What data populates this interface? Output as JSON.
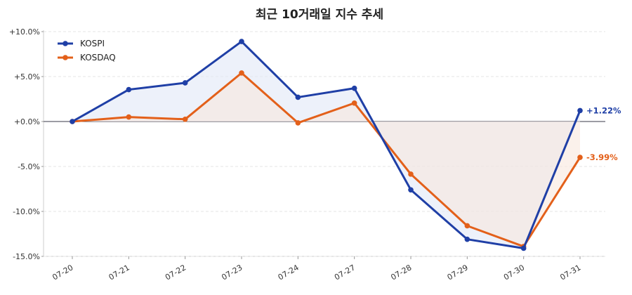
{
  "chart_data": {
    "type": "line",
    "title": "최근 10거래일 지수 추세",
    "xlabel": "",
    "ylabel": "",
    "categories": [
      "07-20",
      "07-21",
      "07-22",
      "07-23",
      "07-24",
      "07-27",
      "07-28",
      "07-29",
      "07-30",
      "07-31"
    ],
    "ylim": [
      -15,
      10
    ],
    "yticks": [
      10,
      5,
      0,
      -5,
      -10,
      -15
    ],
    "ytick_labels": [
      "+10.0%",
      "+5.0%",
      "+0.0%",
      "-5.0%",
      "-10.0%",
      "-15.0%"
    ],
    "grid": true,
    "legend": "top-left",
    "series": [
      {
        "name": "KOSPI",
        "color": "#1f3fa6",
        "fill": "#dfe5f6",
        "values": [
          0.0,
          3.55,
          4.3,
          8.9,
          2.7,
          3.7,
          -7.6,
          -13.1,
          -14.1,
          1.22
        ],
        "end_label": "+1.22%"
      },
      {
        "name": "KOSDAQ",
        "color": "#e3601a",
        "fill": "#f7e6da",
        "values": [
          0.0,
          0.5,
          0.25,
          5.4,
          -0.15,
          2.05,
          -5.85,
          -11.6,
          -13.9,
          -3.99
        ],
        "end_label": "-3.99%"
      }
    ]
  }
}
